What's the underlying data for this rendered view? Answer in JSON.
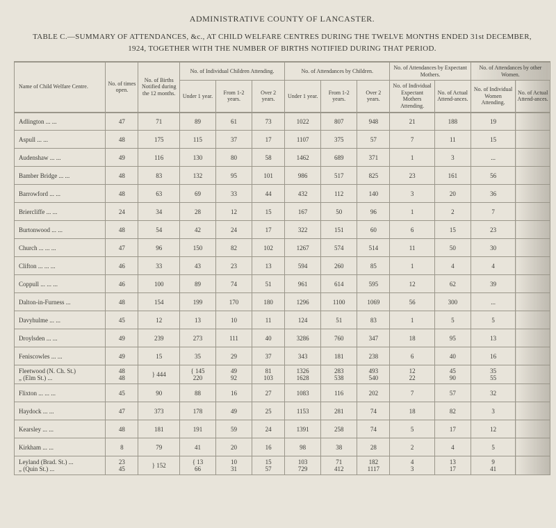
{
  "header": {
    "main_title": "ADMINISTRATIVE COUNTY OF LANCASTER.",
    "sub_title": "TABLE C.—SUMMARY OF ATTENDANCES, &c., AT CHILD WELFARE CENTRES DURING THE TWELVE MONTHS ENDED 31st DECEMBER, 1924, TOGETHER WITH THE NUMBER OF BIRTHS NOTIFIED DURING THAT PERIOD."
  },
  "columns": {
    "name": "Name of Child Welfare Centre.",
    "times_open": "No. of times open.",
    "births": "No. of Births Notified during the 12 months.",
    "grp_indiv_children": "No. of Individual Children Attending.",
    "under1": "Under 1 year.",
    "from12": "From 1-2 years.",
    "over2": "Over 2 years.",
    "grp_attend_children": "No. of Attendances by Children.",
    "a_under1": "Under 1 year.",
    "a_from12": "From 1-2 years.",
    "a_over2": "Over 2 years.",
    "grp_expectant": "No. of Attendances by Expectant Mothers.",
    "exp_indiv": "No. of Individual Expectant Mothers Attending.",
    "exp_actual": "No. of Actual Attend-ances.",
    "grp_other_women": "No. of Attendances by other Women.",
    "w_indiv": "No. of Individual Women Attending.",
    "w_actual": "No. of Actual Attend-ances."
  },
  "rows": [
    {
      "name": "Adlington     ...     ...",
      "times": "47",
      "births": "71",
      "u1": "89",
      "f12": "61",
      "o2": "73",
      "au1": "1022",
      "af12": "807",
      "ao2": "948",
      "ei": "21",
      "ea": "188",
      "wi": "19",
      "wa": ""
    },
    {
      "name": "Aspull     ...     ...",
      "times": "48",
      "births": "175",
      "u1": "115",
      "f12": "37",
      "o2": "17",
      "au1": "1107",
      "af12": "375",
      "ao2": "57",
      "ei": "7",
      "ea": "11",
      "wi": "15",
      "wa": ""
    },
    {
      "name": "Audenshaw     ...     ...",
      "times": "49",
      "births": "116",
      "u1": "130",
      "f12": "80",
      "o2": "58",
      "au1": "1462",
      "af12": "689",
      "ao2": "371",
      "ei": "1",
      "ea": "3",
      "wi": "...",
      "wa": ""
    },
    {
      "name": "Bamber Bridge ...     ...",
      "times": "48",
      "births": "83",
      "u1": "132",
      "f12": "95",
      "o2": "101",
      "au1": "986",
      "af12": "517",
      "ao2": "825",
      "ei": "23",
      "ea": "161",
      "wi": "56",
      "wa": ""
    },
    {
      "name": "Barrowford     ...     ...",
      "times": "48",
      "births": "63",
      "u1": "69",
      "f12": "33",
      "o2": "44",
      "au1": "432",
      "af12": "112",
      "ao2": "140",
      "ei": "3",
      "ea": "20",
      "wi": "36",
      "wa": ""
    },
    {
      "name": "Briercliffe     ...     ...",
      "times": "24",
      "births": "34",
      "u1": "28",
      "f12": "12",
      "o2": "15",
      "au1": "167",
      "af12": "50",
      "ao2": "96",
      "ei": "1",
      "ea": "2",
      "wi": "7",
      "wa": ""
    },
    {
      "name": "Burtonwood   ...     ...",
      "times": "48",
      "births": "54",
      "u1": "42",
      "f12": "24",
      "o2": "17",
      "au1": "322",
      "af12": "151",
      "ao2": "60",
      "ei": "6",
      "ea": "15",
      "wi": "23",
      "wa": ""
    },
    {
      "name": "Church   ...   ...     ...",
      "times": "47",
      "births": "96",
      "u1": "150",
      "f12": "82",
      "o2": "102",
      "au1": "1267",
      "af12": "574",
      "ao2": "514",
      "ei": "11",
      "ea": "50",
      "wi": "30",
      "wa": ""
    },
    {
      "name": "Clifton   ...   ...     ...",
      "times": "46",
      "births": "33",
      "u1": "43",
      "f12": "23",
      "o2": "13",
      "au1": "594",
      "af12": "260",
      "ao2": "85",
      "ei": "1",
      "ea": "4",
      "wi": "4",
      "wa": ""
    },
    {
      "name": "Coppull ...     ...     ...",
      "times": "46",
      "births": "100",
      "u1": "89",
      "f12": "74",
      "o2": "51",
      "au1": "961",
      "af12": "614",
      "ao2": "595",
      "ei": "12",
      "ea": "62",
      "wi": "39",
      "wa": ""
    },
    {
      "name": "Dalton-in-Furness     ...",
      "times": "48",
      "births": "154",
      "u1": "199",
      "f12": "170",
      "o2": "180",
      "au1": "1296",
      "af12": "1100",
      "ao2": "1069",
      "ei": "56",
      "ea": "300",
      "wi": "...",
      "wa": ""
    },
    {
      "name": "Davyhulme     ...     ...",
      "times": "45",
      "births": "12",
      "u1": "13",
      "f12": "10",
      "o2": "11",
      "au1": "124",
      "af12": "51",
      "ao2": "83",
      "ei": "1",
      "ea": "5",
      "wi": "5",
      "wa": ""
    },
    {
      "name": "Droylsden     ...     ...",
      "times": "49",
      "births": "239",
      "u1": "273",
      "f12": "111",
      "o2": "40",
      "au1": "3286",
      "af12": "760",
      "ao2": "347",
      "ei": "18",
      "ea": "95",
      "wi": "13",
      "wa": ""
    },
    {
      "name": "Feniscowles   ...     ...",
      "times": "49",
      "births": "15",
      "u1": "35",
      "f12": "29",
      "o2": "37",
      "au1": "343",
      "af12": "181",
      "ao2": "238",
      "ei": "6",
      "ea": "40",
      "wi": "16",
      "wa": ""
    },
    {
      "name": "Fleetwood (N. Ch. St.)\n   „        (Elm St.) ...",
      "times": "48\n48",
      "births": "} 444",
      "u1": "{ 145\n  220",
      "f12": "49\n92",
      "o2": "81\n103",
      "au1": "1326\n1628",
      "af12": "283\n538",
      "ao2": "493\n540",
      "ei": "12\n22",
      "ea": "45\n90",
      "wi": "35\n55",
      "wa": ""
    },
    {
      "name": "Flixton ...   ...     ...",
      "times": "45",
      "births": "90",
      "u1": "88",
      "f12": "16",
      "o2": "27",
      "au1": "1083",
      "af12": "116",
      "ao2": "202",
      "ei": "7",
      "ea": "57",
      "wi": "32",
      "wa": ""
    },
    {
      "name": "Haydock     ...     ...",
      "times": "47",
      "births": "373",
      "u1": "178",
      "f12": "49",
      "o2": "25",
      "au1": "1153",
      "af12": "281",
      "ao2": "74",
      "ei": "18",
      "ea": "82",
      "wi": "3",
      "wa": ""
    },
    {
      "name": "Kearsley     ...     ...",
      "times": "48",
      "births": "181",
      "u1": "191",
      "f12": "59",
      "o2": "24",
      "au1": "1391",
      "af12": "258",
      "ao2": "74",
      "ei": "5",
      "ea": "17",
      "wi": "12",
      "wa": ""
    },
    {
      "name": "Kirkham     ...     ...",
      "times": "8",
      "births": "79",
      "u1": "41",
      "f12": "20",
      "o2": "16",
      "au1": "98",
      "af12": "38",
      "ao2": "28",
      "ei": "2",
      "ea": "4",
      "wi": "5",
      "wa": ""
    },
    {
      "name": "Leyland (Brad. St.)  ...\n   „      (Quin St.)   ...",
      "times": "23\n45",
      "births": "} 152",
      "u1": "{ 13\n  66",
      "f12": "10\n31",
      "o2": "15\n57",
      "au1": "103\n729",
      "af12": "71\n412",
      "ao2": "182\n1117",
      "ei": "4\n3",
      "ea": "13\n17",
      "wi": "9\n41",
      "wa": ""
    }
  ]
}
